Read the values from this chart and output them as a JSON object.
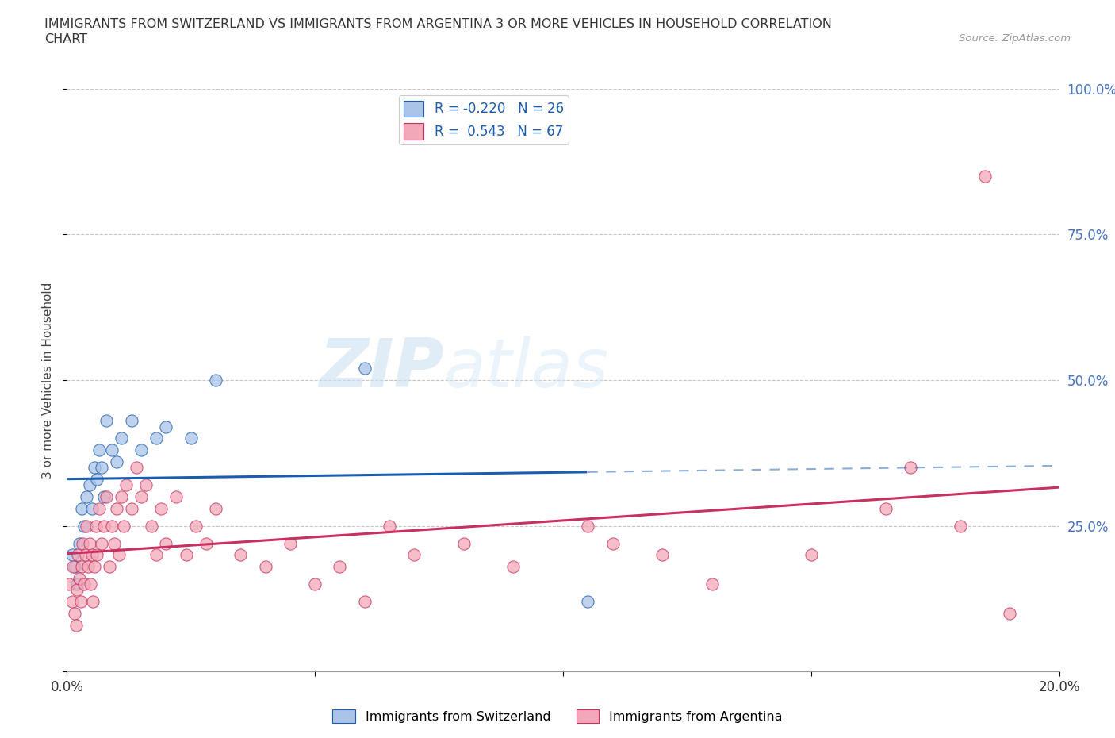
{
  "title_line1": "IMMIGRANTS FROM SWITZERLAND VS IMMIGRANTS FROM ARGENTINA 3 OR MORE VEHICLES IN HOUSEHOLD CORRELATION",
  "title_line2": "CHART",
  "source": "Source: ZipAtlas.com",
  "ylabel": "3 or more Vehicles in Household",
  "xlim": [
    0.0,
    20.0
  ],
  "ylim": [
    0.0,
    100.0
  ],
  "r_switzerland": -0.22,
  "n_switzerland": 26,
  "r_argentina": 0.543,
  "n_argentina": 67,
  "color_switzerland": "#aac4e8",
  "color_argentina": "#f2a8b8",
  "line_color_switzerland": "#1a5cb0",
  "line_color_argentina": "#c83060",
  "watermark_zip": "ZIP",
  "watermark_atlas": "atlas",
  "swiss_x": [
    0.1,
    0.15,
    0.2,
    0.25,
    0.3,
    0.35,
    0.4,
    0.45,
    0.5,
    0.55,
    0.6,
    0.65,
    0.7,
    0.75,
    0.8,
    0.9,
    1.0,
    1.1,
    1.3,
    1.5,
    1.8,
    2.0,
    2.5,
    3.0,
    6.0,
    10.5
  ],
  "swiss_y": [
    20,
    18,
    15,
    22,
    28,
    25,
    30,
    32,
    28,
    35,
    33,
    38,
    35,
    30,
    43,
    38,
    36,
    40,
    43,
    38,
    40,
    42,
    40,
    50,
    52,
    12
  ],
  "arg_x": [
    0.05,
    0.1,
    0.12,
    0.15,
    0.18,
    0.2,
    0.22,
    0.25,
    0.28,
    0.3,
    0.32,
    0.35,
    0.38,
    0.4,
    0.42,
    0.45,
    0.48,
    0.5,
    0.52,
    0.55,
    0.58,
    0.6,
    0.65,
    0.7,
    0.75,
    0.8,
    0.85,
    0.9,
    0.95,
    1.0,
    1.05,
    1.1,
    1.15,
    1.2,
    1.3,
    1.4,
    1.5,
    1.6,
    1.7,
    1.8,
    1.9,
    2.0,
    2.2,
    2.4,
    2.6,
    2.8,
    3.0,
    3.5,
    4.0,
    4.5,
    5.0,
    5.5,
    6.0,
    6.5,
    7.0,
    8.0,
    9.0,
    10.5,
    11.0,
    12.0,
    13.0,
    15.0,
    17.0,
    18.0,
    18.5,
    19.0,
    16.5
  ],
  "arg_y": [
    15,
    12,
    18,
    10,
    8,
    14,
    20,
    16,
    12,
    18,
    22,
    15,
    20,
    25,
    18,
    22,
    15,
    20,
    12,
    18,
    25,
    20,
    28,
    22,
    25,
    30,
    18,
    25,
    22,
    28,
    20,
    30,
    25,
    32,
    28,
    35,
    30,
    32,
    25,
    20,
    28,
    22,
    30,
    20,
    25,
    22,
    28,
    20,
    18,
    22,
    15,
    18,
    12,
    25,
    20,
    22,
    18,
    25,
    22,
    20,
    15,
    20,
    35,
    25,
    85,
    10,
    28
  ]
}
